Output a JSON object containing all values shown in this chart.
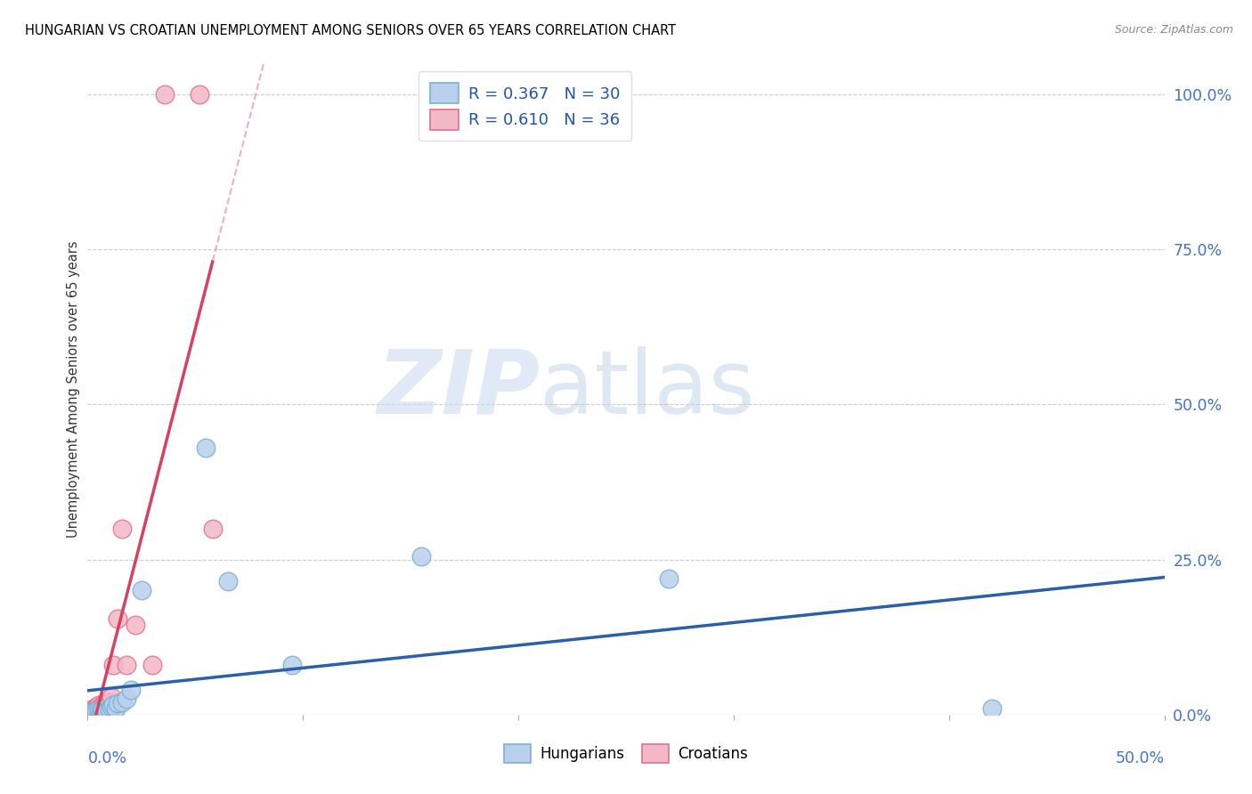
{
  "title": "HUNGARIAN VS CROATIAN UNEMPLOYMENT AMONG SENIORS OVER 65 YEARS CORRELATION CHART",
  "source": "Source: ZipAtlas.com",
  "ylabel": "Unemployment Among Seniors over 65 years",
  "bottom_legend": [
    "Hungarians",
    "Croatians"
  ],
  "hungarian_color": "#b8d0eb",
  "hungarian_edge": "#7bafd4",
  "croatian_color": "#f2b8c6",
  "croatian_edge": "#e07090",
  "hungarian_trend_color": "#2c5fa8",
  "croatian_trend_color": "#d94060",
  "croatian_dash_color": "#e090a8",
  "xlim": [
    0.0,
    0.5
  ],
  "ylim": [
    0.0,
    1.05
  ],
  "ytick_values": [
    0.0,
    0.25,
    0.5,
    0.75,
    1.0
  ],
  "xtick_values": [
    0.0,
    0.1,
    0.2,
    0.3,
    0.4,
    0.5
  ],
  "legend_R_N": [
    {
      "label": "R = 0.367   N = 30",
      "facecolor": "#b8d0eb",
      "edgecolor": "#7bafd4"
    },
    {
      "label": "R = 0.610   N = 36",
      "facecolor": "#f2b8c6",
      "edgecolor": "#e07090"
    }
  ],
  "hungarian_x": [
    0.001,
    0.002,
    0.002,
    0.003,
    0.003,
    0.004,
    0.004,
    0.005,
    0.005,
    0.006,
    0.006,
    0.007,
    0.007,
    0.008,
    0.009,
    0.01,
    0.011,
    0.012,
    0.013,
    0.014,
    0.016,
    0.018,
    0.02,
    0.025,
    0.055,
    0.065,
    0.095,
    0.155,
    0.27,
    0.42
  ],
  "hungarian_y": [
    0.002,
    0.003,
    0.004,
    0.002,
    0.005,
    0.003,
    0.006,
    0.004,
    0.007,
    0.003,
    0.005,
    0.004,
    0.008,
    0.006,
    0.005,
    0.008,
    0.012,
    0.015,
    0.01,
    0.018,
    0.02,
    0.025,
    0.04,
    0.2,
    0.43,
    0.215,
    0.08,
    0.255,
    0.22,
    0.01
  ],
  "croatian_x": [
    0.001,
    0.001,
    0.001,
    0.002,
    0.002,
    0.002,
    0.002,
    0.003,
    0.003,
    0.003,
    0.003,
    0.004,
    0.004,
    0.004,
    0.005,
    0.005,
    0.005,
    0.006,
    0.006,
    0.007,
    0.007,
    0.008,
    0.008,
    0.009,
    0.01,
    0.01,
    0.011,
    0.012,
    0.014,
    0.016,
    0.018,
    0.022,
    0.03,
    0.036,
    0.052,
    0.058
  ],
  "croatian_y": [
    0.002,
    0.003,
    0.005,
    0.003,
    0.004,
    0.006,
    0.008,
    0.003,
    0.005,
    0.007,
    0.01,
    0.004,
    0.008,
    0.012,
    0.005,
    0.008,
    0.015,
    0.006,
    0.012,
    0.008,
    0.015,
    0.012,
    0.018,
    0.015,
    0.012,
    0.02,
    0.028,
    0.08,
    0.155,
    0.3,
    0.08,
    0.145,
    0.08,
    1.0,
    1.0,
    0.3
  ]
}
